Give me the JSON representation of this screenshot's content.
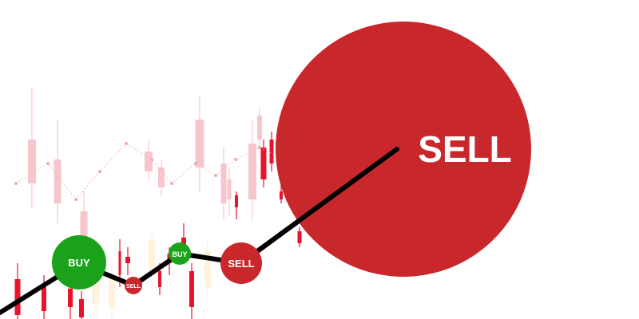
{
  "colors": {
    "buy": "#1aa31a",
    "sell": "#c8282c",
    "trend_line": "#000000",
    "bg_candle_red": "#e8142c",
    "bg_candle_pink": "#f6c6cc",
    "bg_candle_cream": "#fff1dc",
    "bg_dots": "#f3a6b0"
  },
  "signals": [
    {
      "type": "buy",
      "label": "BUY"
    },
    {
      "type": "sell",
      "label": "SELL"
    },
    {
      "type": "buy",
      "label": "BUY"
    },
    {
      "type": "sell",
      "label": "SELL"
    },
    {
      "type": "sell",
      "label": "SELL"
    }
  ]
}
